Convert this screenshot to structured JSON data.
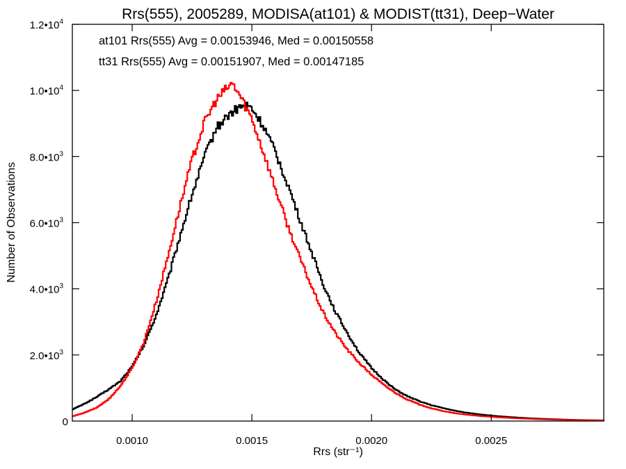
{
  "chart_data": {
    "type": "line",
    "title": "Rrs(555), 2005289, MODISA(at101) & MODIST(tt31), Deep−Water",
    "xlabel": "Rrs (str⁻¹)",
    "ylabel": "Number of Observations",
    "xlim": [
      0.00075,
      0.00297
    ],
    "ylim": [
      0,
      12000
    ],
    "xticks": [
      {
        "value": 0.001,
        "label": "0.0010"
      },
      {
        "value": 0.0015,
        "label": "0.0015"
      },
      {
        "value": 0.002,
        "label": "0.0020"
      },
      {
        "value": 0.0025,
        "label": "0.0025"
      }
    ],
    "yticks": [
      {
        "value": 0,
        "label": "0"
      },
      {
        "value": 2000,
        "label": "2.0•10",
        "exp": "3"
      },
      {
        "value": 4000,
        "label": "4.0•10",
        "exp": "3"
      },
      {
        "value": 6000,
        "label": "6.0•10",
        "exp": "3"
      },
      {
        "value": 8000,
        "label": "8.0•10",
        "exp": "3"
      },
      {
        "value": 10000,
        "label": "1.0•10",
        "exp": "4"
      },
      {
        "value": 12000,
        "label": "1.2•10",
        "exp": "4"
      }
    ],
    "grid": false,
    "annotations": [
      {
        "text": "at101 Rrs(555) Avg = 0.00153946, Med = 0.00150558",
        "color": "#000000"
      },
      {
        "text": "tt31 Rrs(555) Avg = 0.00151907, Med = 0.00147185",
        "color": "#ff0000"
      }
    ],
    "series": [
      {
        "color": "#000000",
        "points": [
          [
            0.00075,
            350
          ],
          [
            0.0008,
            520
          ],
          [
            0.00085,
            720
          ],
          [
            0.0009,
            950
          ],
          [
            0.00095,
            1200
          ],
          [
            0.001,
            1650
          ],
          [
            0.00105,
            2300
          ],
          [
            0.0011,
            3200
          ],
          [
            0.00115,
            4300
          ],
          [
            0.0012,
            5600
          ],
          [
            0.00125,
            6850
          ],
          [
            0.0013,
            7950
          ],
          [
            0.00135,
            8850
          ],
          [
            0.0014,
            9250
          ],
          [
            0.00145,
            9500
          ],
          [
            0.00148,
            9550
          ],
          [
            0.0015,
            9450
          ],
          [
            0.00155,
            8900
          ],
          [
            0.0016,
            8100
          ],
          [
            0.00165,
            7150
          ],
          [
            0.0017,
            6100
          ],
          [
            0.00175,
            5100
          ],
          [
            0.0018,
            4100
          ],
          [
            0.00185,
            3300
          ],
          [
            0.0019,
            2650
          ],
          [
            0.00195,
            2050
          ],
          [
            0.002,
            1600
          ],
          [
            0.00205,
            1250
          ],
          [
            0.0021,
            950
          ],
          [
            0.00215,
            750
          ],
          [
            0.0022,
            600
          ],
          [
            0.00225,
            480
          ],
          [
            0.0023,
            390
          ],
          [
            0.00235,
            310
          ],
          [
            0.0024,
            250
          ],
          [
            0.00245,
            205
          ],
          [
            0.0025,
            165
          ],
          [
            0.00255,
            135
          ],
          [
            0.0026,
            110
          ],
          [
            0.00265,
            90
          ],
          [
            0.0027,
            72
          ],
          [
            0.00275,
            58
          ],
          [
            0.0028,
            46
          ],
          [
            0.00285,
            36
          ],
          [
            0.0029,
            28
          ],
          [
            0.00297,
            20
          ]
        ]
      },
      {
        "color": "#ff0000",
        "points": [
          [
            0.00075,
            140
          ],
          [
            0.0008,
            250
          ],
          [
            0.00085,
            400
          ],
          [
            0.0009,
            650
          ],
          [
            0.00095,
            1050
          ],
          [
            0.001,
            1600
          ],
          [
            0.00105,
            2400
          ],
          [
            0.0011,
            3600
          ],
          [
            0.00115,
            5000
          ],
          [
            0.0012,
            6500
          ],
          [
            0.00125,
            7900
          ],
          [
            0.0013,
            9000
          ],
          [
            0.00135,
            9700
          ],
          [
            0.0014,
            10100
          ],
          [
            0.00142,
            10200
          ],
          [
            0.00145,
            9850
          ],
          [
            0.0015,
            9150
          ],
          [
            0.00155,
            8100
          ],
          [
            0.0016,
            7000
          ],
          [
            0.00165,
            5900
          ],
          [
            0.0017,
            4950
          ],
          [
            0.00175,
            4050
          ],
          [
            0.0018,
            3250
          ],
          [
            0.00185,
            2650
          ],
          [
            0.0019,
            2150
          ],
          [
            0.00195,
            1750
          ],
          [
            0.002,
            1400
          ],
          [
            0.00205,
            1100
          ],
          [
            0.0021,
            850
          ],
          [
            0.00215,
            650
          ],
          [
            0.0022,
            500
          ],
          [
            0.00225,
            385
          ],
          [
            0.0023,
            300
          ],
          [
            0.00235,
            235
          ],
          [
            0.0024,
            190
          ],
          [
            0.00245,
            155
          ],
          [
            0.0025,
            128
          ],
          [
            0.00255,
            105
          ],
          [
            0.0026,
            86
          ],
          [
            0.00265,
            70
          ],
          [
            0.0027,
            57
          ],
          [
            0.00275,
            46
          ],
          [
            0.0028,
            37
          ],
          [
            0.00285,
            30
          ],
          [
            0.0029,
            24
          ],
          [
            0.00297,
            18
          ]
        ]
      }
    ]
  }
}
